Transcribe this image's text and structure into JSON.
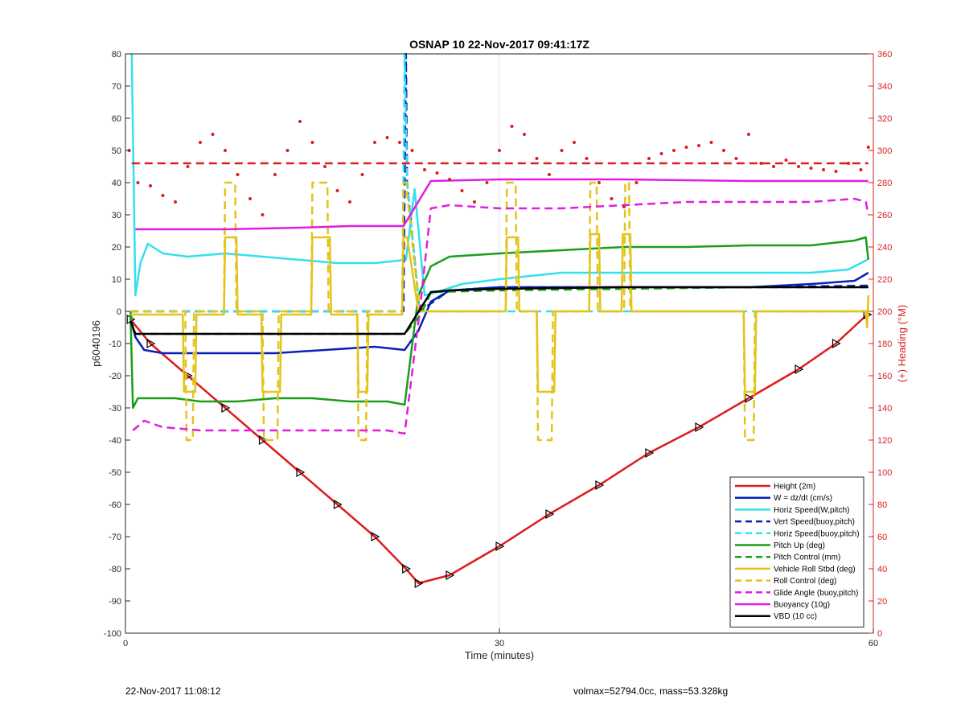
{
  "footer": {
    "left": "22-Nov-2017 11:08:12",
    "right": "volmax=52794.0cc, mass=53.328kg"
  },
  "chart_data": {
    "type": "line",
    "title": "OSNAP 10 22-Nov-2017 09:41:17Z",
    "xlabel": "Time (minutes)",
    "ylabel": "p6040196",
    "ylabel_right": "(+) Heading (°M)",
    "xlim": [
      0,
      60
    ],
    "ylim": [
      -100,
      80
    ],
    "ylim_right": [
      0,
      360
    ],
    "xticks": [
      0,
      30,
      60
    ],
    "yticks": [
      -100,
      -90,
      -80,
      -70,
      -60,
      -50,
      -40,
      -30,
      -20,
      -10,
      0,
      10,
      20,
      30,
      40,
      50,
      60,
      70,
      80
    ],
    "yticks_right": [
      0,
      20,
      40,
      60,
      80,
      100,
      120,
      140,
      160,
      180,
      200,
      220,
      240,
      260,
      280,
      300,
      320,
      340,
      360
    ],
    "grid": "x-only",
    "legend_position": "bottom-right",
    "series": [
      {
        "name": "Height (2m)",
        "color": "#dd1c1c",
        "style": "solid",
        "markers": "triangle",
        "x": [
          0.4,
          2,
          5,
          8,
          11,
          14,
          17,
          20,
          22.5,
          23.5,
          26,
          30,
          34,
          38,
          42,
          46,
          50,
          54,
          57,
          59.5
        ],
        "y": [
          -2.5,
          -10,
          -20,
          -30,
          -40,
          -50,
          -60,
          -70,
          -80,
          -84.5,
          -82,
          -73,
          -63,
          -54,
          -44,
          -36,
          -27,
          -18,
          -10,
          -1
        ]
      },
      {
        "name": "W = dz/dt (cm/s)",
        "color": "#0a1fb8",
        "style": "solid",
        "x": [
          0.4,
          0.8,
          1.5,
          3,
          5,
          8,
          12,
          16,
          20,
          22.4,
          23.5,
          24.5,
          26,
          30,
          35,
          40,
          45,
          50,
          55,
          58.5,
          59.6
        ],
        "y": [
          -2,
          -8,
          -12,
          -13,
          -13,
          -13,
          -13,
          -12,
          -11,
          -12,
          -6,
          3,
          6.5,
          7.5,
          7.5,
          7.5,
          7.5,
          7.5,
          8.5,
          9.5,
          12
        ]
      },
      {
        "name": "Horiz Speed(W,pitch)",
        "color": "#33e0f0",
        "style": "solid",
        "x": [
          0.5,
          0.8,
          1.2,
          1.8,
          3,
          5,
          8,
          11,
          14,
          17,
          20,
          22.5,
          23.2,
          24,
          25,
          27,
          30,
          35,
          40,
          45,
          50,
          55,
          58,
          59.5
        ],
        "y": [
          80,
          5,
          15,
          21,
          18,
          17,
          18,
          17,
          16,
          15,
          15,
          16,
          38,
          5,
          6,
          8.5,
          10,
          12,
          12,
          12,
          12,
          12,
          13,
          16
        ]
      },
      {
        "name": "Vert Speed(buoy,pitch)",
        "color": "#0a1fb8",
        "style": "dashed",
        "x": [
          0.4,
          22.3,
          22.5,
          22.6,
          23.6,
          26,
          30,
          40,
          50,
          59.6
        ],
        "y": [
          0,
          0,
          80,
          40,
          0,
          6.5,
          7.5,
          7.5,
          7.5,
          8
        ]
      },
      {
        "name": "Horiz Speed(buoy,pitch)",
        "color": "#33e0f0",
        "style": "dashed",
        "x": [
          0.4,
          22.2,
          22.4,
          22.6,
          23.6,
          26,
          30,
          40,
          50,
          59.6
        ],
        "y": [
          0,
          0,
          80,
          40,
          0,
          0,
          0,
          0,
          0,
          0
        ]
      },
      {
        "name": "Pitch Up (deg)",
        "color": "#1a9e1a",
        "style": "solid",
        "x": [
          0.4,
          0.6,
          1,
          2,
          4,
          6,
          9,
          12,
          15,
          18,
          21,
          22.4,
          23.5,
          24.5,
          26,
          30,
          35,
          40,
          45,
          50,
          55,
          58.5,
          59.4,
          59.6
        ],
        "y": [
          0,
          -30,
          -27,
          -27,
          -27,
          -28,
          -28,
          -27,
          -27,
          -28,
          -28,
          -29,
          5,
          14,
          17,
          18,
          19,
          20,
          20,
          20.5,
          20.5,
          22,
          23,
          16
        ]
      },
      {
        "name": "Pitch Control (mm)",
        "color": "#1a9e1a",
        "style": "dashed",
        "x": [
          0.4,
          0.7,
          5,
          10,
          15,
          20,
          22.4,
          23.7,
          24.5,
          30,
          40,
          50,
          59.6
        ],
        "y": [
          0,
          -7,
          -7,
          -7,
          -7,
          -7,
          -7,
          -1,
          6,
          6.5,
          7,
          7.5,
          7.5
        ]
      },
      {
        "name": "Vehicle Roll Stbd (deg)",
        "color": "#e3c41a",
        "style": "solid",
        "x": [
          0.4,
          4.6,
          4.7,
          5.6,
          5.7,
          7.9,
          8,
          8.9,
          9,
          10.9,
          11,
          12.4,
          12.5,
          14.9,
          15,
          16.4,
          16.5,
          18.6,
          18.7,
          19.4,
          19.5,
          22.2,
          22.3,
          22.6,
          23.5,
          30.5,
          30.6,
          31.5,
          31.6,
          33,
          33.1,
          34.4,
          34.5,
          37.2,
          37.3,
          38,
          38.1,
          39.8,
          39.9,
          40.5,
          40.6,
          49.6,
          49.7,
          50.5,
          50.6,
          59.4,
          59.5,
          59.6
        ],
        "y": [
          -1,
          -1,
          -25,
          -25,
          -1,
          -1,
          23,
          23,
          -1,
          -1,
          -25,
          -25,
          -1,
          -1,
          23,
          23,
          -1,
          -1,
          -25,
          -25,
          -1,
          -1,
          23,
          23,
          0,
          0,
          23,
          23,
          0,
          0,
          -25,
          -25,
          0,
          0,
          24,
          24,
          0,
          0,
          24,
          24,
          0,
          0,
          -25,
          -25,
          0,
          0,
          -5,
          5
        ]
      },
      {
        "name": "Roll Control (deg)",
        "color": "#e3c41a",
        "style": "dashed",
        "x": [
          0.4,
          4.8,
          4.9,
          5.4,
          5.5,
          7.9,
          8,
          8.8,
          8.9,
          11,
          11.1,
          12.2,
          12.3,
          14.9,
          15,
          16.2,
          16.3,
          18.6,
          18.7,
          19.3,
          19.4,
          22.2,
          22.3,
          22.5,
          23.6,
          30.5,
          30.6,
          31.3,
          31.4,
          33,
          33.1,
          34.2,
          34.3,
          37.2,
          37.3,
          37.8,
          37.9,
          40,
          40.1,
          40.4,
          40.5,
          49.6,
          49.7,
          50.4,
          50.5,
          59.6
        ],
        "y": [
          0,
          0,
          -40,
          -40,
          0,
          0,
          40,
          40,
          0,
          0,
          -40,
          -40,
          0,
          0,
          40,
          40,
          0,
          0,
          -40,
          -40,
          0,
          0,
          40,
          40,
          0,
          0,
          40,
          40,
          0,
          0,
          -40,
          -40,
          0,
          0,
          40,
          40,
          0,
          0,
          40,
          40,
          0,
          0,
          -40,
          -40,
          0,
          0
        ]
      },
      {
        "name": "Glide Angle (buoy,pitch)",
        "color": "#e01ee0",
        "style": "dashed",
        "x": [
          0.6,
          1.5,
          3,
          6,
          9,
          12,
          15,
          18,
          21,
          22.4,
          23.6,
          24.5,
          26,
          30,
          35,
          40,
          45,
          50,
          55,
          58.5,
          59.4,
          59.6
        ],
        "y": [
          -37,
          -34,
          -36,
          -37,
          -37,
          -37,
          -37,
          -37,
          -37,
          -38,
          0,
          32,
          33,
          32,
          32,
          33,
          34,
          34,
          34,
          35,
          34,
          30
        ]
      },
      {
        "name": "Buoyancy (10g)",
        "color": "#e01ee0",
        "style": "solid",
        "x": [
          0.8,
          8,
          14,
          18,
          22.3,
          24.5,
          30,
          40,
          50,
          59.6
        ],
        "y": [
          25.5,
          25.5,
          26,
          26.5,
          26.5,
          40.5,
          41,
          41,
          40.5,
          40.5
        ]
      },
      {
        "name": "VBD (10 cc)",
        "color": "#000000",
        "style": "solid",
        "x": [
          0.4,
          0.8,
          5,
          10,
          15,
          20,
          22.4,
          24.5,
          26,
          30,
          40,
          50,
          59.6
        ],
        "y": [
          -3,
          -7,
          -7,
          -7,
          -7,
          -7,
          -7,
          6,
          6.5,
          7,
          7.5,
          7.5,
          7.5
        ]
      },
      {
        "name": "",
        "color": "#d92020",
        "style": "dashed",
        "axis": "right",
        "x": [
          0.5,
          59.6
        ],
        "y": [
          292,
          292
        ]
      },
      {
        "name": "",
        "color": "#d92020",
        "style": "dotted",
        "axis": "right",
        "x": [
          0.3,
          1,
          2,
          3,
          4,
          5,
          6,
          7,
          8,
          9,
          10,
          11,
          12,
          13,
          14,
          15,
          16,
          17,
          18,
          19,
          20,
          21,
          22,
          23,
          24,
          25,
          26,
          27,
          28,
          29,
          30,
          31,
          32,
          33,
          34,
          35,
          36,
          37,
          38,
          39,
          40,
          41,
          42,
          43,
          44,
          45,
          46,
          47,
          48,
          49,
          50,
          51,
          52,
          53,
          54,
          55,
          56,
          57,
          58,
          59,
          59.6
        ],
        "y": [
          300,
          280,
          278,
          272,
          268,
          290,
          305,
          310,
          300,
          285,
          270,
          260,
          285,
          300,
          318,
          305,
          290,
          275,
          268,
          285,
          305,
          308,
          305,
          300,
          288,
          286,
          282,
          275,
          268,
          280,
          300,
          315,
          310,
          295,
          285,
          300,
          305,
          295,
          280,
          270,
          265,
          280,
          295,
          298,
          300,
          302,
          303,
          305,
          300,
          295,
          310,
          292,
          290,
          294,
          290,
          289,
          288,
          287,
          292,
          288,
          302
        ]
      }
    ]
  }
}
